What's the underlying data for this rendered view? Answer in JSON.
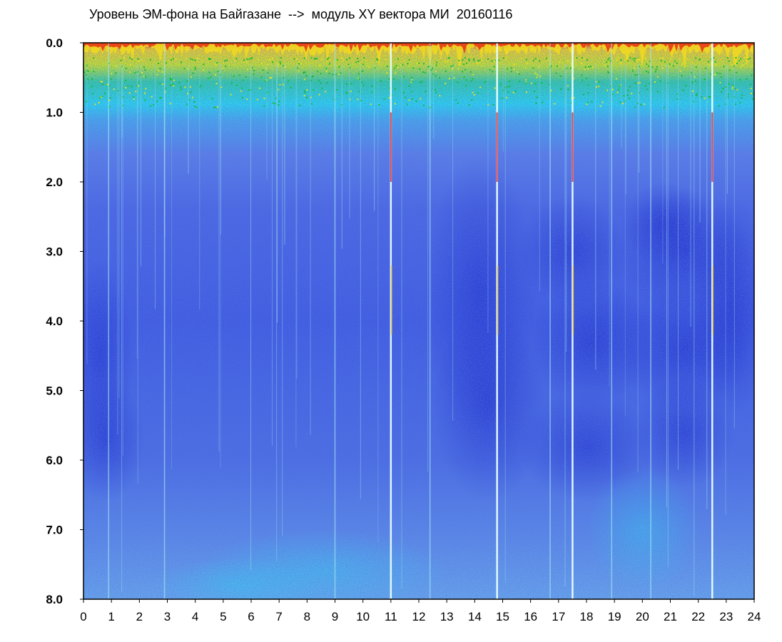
{
  "chart_data": {
    "type": "heatmap",
    "title": "Уровень ЭМ-фона на Байгазане  -->  модуль XY вектора МИ  20160116",
    "xlabel": "",
    "ylabel": "",
    "xlim": [
      0,
      24
    ],
    "ylim": [
      0.0,
      8.0
    ],
    "y_inverted": true,
    "x_ticks": [
      "0",
      "1",
      "2",
      "3",
      "4",
      "5",
      "6",
      "7",
      "8",
      "9",
      "10",
      "11",
      "12",
      "13",
      "14",
      "15",
      "16",
      "17",
      "18",
      "19",
      "20",
      "21",
      "22",
      "23",
      "24"
    ],
    "y_ticks": [
      "0.0",
      "1.0",
      "2.0",
      "3.0",
      "4.0",
      "5.0",
      "6.0",
      "7.0",
      "8.0"
    ],
    "colorscale": [
      "#1a2ad8",
      "#3c5ae6",
      "#6f8ee8",
      "#23d9ee",
      "#14b83a",
      "#f0f020",
      "#f06018",
      "#e81818"
    ],
    "grid": false,
    "legend": "none",
    "vertical_bands_hours": [
      0.9,
      2.9,
      9.0,
      11.0,
      12.4,
      14.8,
      16.7,
      17.5,
      18.9,
      20.3,
      22.5
    ],
    "strong_bands_hours": [
      11.0,
      14.8,
      17.5,
      22.5
    ]
  }
}
